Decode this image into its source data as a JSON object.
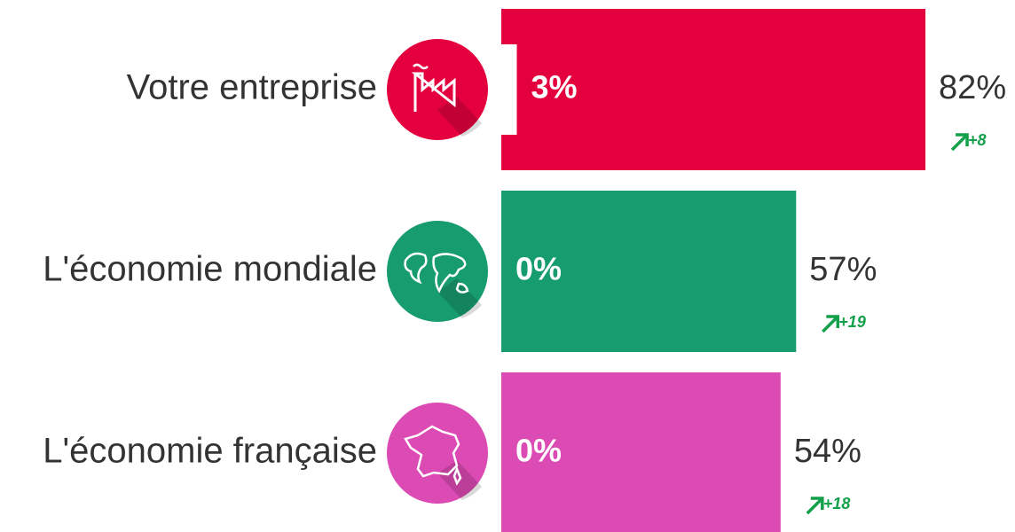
{
  "chart_data": {
    "type": "bar",
    "categories": [
      "Votre entreprise",
      "L'économie mondiale",
      "L'économie française"
    ],
    "colors": [
      "#e4003f",
      "#179c6f",
      "#dc4bb3"
    ],
    "values": [
      82,
      57,
      54
    ],
    "value_labels": [
      "82%",
      "57%",
      "54%"
    ],
    "inner_values": [
      3,
      0,
      0
    ],
    "inner_value_labels": [
      "3%",
      "0%",
      "0%"
    ],
    "changes": [
      8,
      19,
      18
    ],
    "change_labels": [
      "+8",
      "+19",
      "+18"
    ]
  }
}
